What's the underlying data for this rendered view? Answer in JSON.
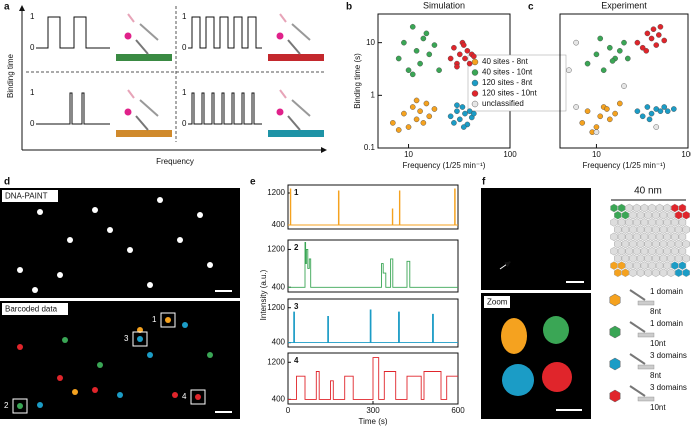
{
  "figure": {
    "panel_a": {
      "label": "a",
      "y_axis_label": "Binding time",
      "x_axis_label": "Frequency",
      "tick_high": "1",
      "tick_low": "0"
    },
    "panel_d": {
      "label": "d",
      "top_title": "DNA-PAINT",
      "bottom_title": "Barcoded data",
      "markers": [
        "1",
        "2",
        "3",
        "4"
      ]
    },
    "panel_f": {
      "label": "f",
      "scale": "40 nm",
      "zoom_title": "Zoom",
      "legend": [
        {
          "line1": "1 domain",
          "line2": "8nt",
          "color": "#f5a21f"
        },
        {
          "line1": "1 domain",
          "line2": "10nt",
          "color": "#3aa655"
        },
        {
          "line1": "3 domains",
          "line2": "8nt",
          "color": "#1b9cc6"
        },
        {
          "line1": "3 domains",
          "line2": "10nt",
          "color": "#e0252b"
        }
      ]
    }
  },
  "chart_data": [
    {
      "type": "scatter",
      "panel_label": "b",
      "title": "Simulation",
      "xlabel": "Frequency (1/25 min⁻¹)",
      "ylabel": "Binding time (s)",
      "log_x": true,
      "log_y": true,
      "xlim": [
        5,
        100
      ],
      "ylim": [
        0.1,
        35
      ],
      "xticks": [
        10,
        100
      ],
      "yticks": [
        0.1,
        1,
        10
      ],
      "series": [
        {
          "name": "40 sites - 8nt",
          "color": "#f5a21f",
          "x": [
            7,
            9,
            10,
            11,
            12,
            13,
            14,
            15,
            16,
            18,
            8,
            12
          ],
          "values": [
            0.3,
            0.45,
            0.25,
            0.6,
            0.35,
            0.5,
            0.3,
            0.7,
            0.4,
            0.55,
            0.22,
            0.8
          ]
        },
        {
          "name": "40 sites - 10nt",
          "color": "#3aa655",
          "x": [
            8,
            9,
            10,
            11,
            12,
            13,
            14,
            16,
            18,
            20,
            11,
            15
          ],
          "values": [
            5,
            10,
            3,
            20,
            7,
            4,
            12,
            6,
            9,
            3,
            2.5,
            15
          ]
        },
        {
          "name": "120 sites - 8nt",
          "color": "#1b9cc6",
          "x": [
            26,
            28,
            30,
            32,
            34,
            36,
            38,
            40,
            42,
            30,
            35,
            44
          ],
          "values": [
            0.4,
            0.3,
            0.5,
            0.35,
            0.6,
            0.45,
            0.28,
            0.5,
            0.38,
            0.65,
            0.25,
            0.45
          ]
        },
        {
          "name": "120 sites - 10nt",
          "color": "#e0252b",
          "x": [
            26,
            28,
            30,
            32,
            34,
            36,
            38,
            40,
            42,
            30,
            35,
            44
          ],
          "values": [
            5,
            8,
            4,
            6,
            10,
            5,
            7,
            4,
            6,
            3.5,
            9,
            5.5
          ]
        },
        {
          "name": "unclassified",
          "color": "#e6e6e6",
          "x": [],
          "values": []
        }
      ]
    },
    {
      "type": "scatter",
      "panel_label": "c",
      "title": "Experiment",
      "xlabel": "Frequency (1/25 min⁻¹)",
      "log_x": true,
      "log_y": true,
      "xlim": [
        4,
        100
      ],
      "ylim": [
        0.1,
        35
      ],
      "xticks": [
        10,
        100
      ],
      "series": [
        {
          "color": "#f5a21f",
          "x": [
            7,
            8,
            10,
            12,
            14,
            16,
            18,
            11,
            9,
            13
          ],
          "values": [
            0.3,
            0.5,
            0.25,
            0.6,
            0.35,
            0.45,
            0.7,
            0.4,
            0.2,
            0.55
          ]
        },
        {
          "color": "#3aa655",
          "x": [
            8,
            10,
            12,
            14,
            16,
            18,
            20,
            11,
            15,
            22
          ],
          "values": [
            4,
            6,
            3,
            8,
            5,
            7,
            10,
            12,
            4.5,
            5
          ]
        },
        {
          "color": "#1b9cc6",
          "x": [
            28,
            32,
            36,
            40,
            45,
            50,
            55,
            60,
            70,
            38
          ],
          "values": [
            0.5,
            0.4,
            0.6,
            0.45,
            0.55,
            0.5,
            0.6,
            0.5,
            0.55,
            0.35
          ]
        },
        {
          "color": "#e0252b",
          "x": [
            28,
            32,
            36,
            40,
            45,
            50,
            55,
            35,
            42,
            48
          ],
          "values": [
            10,
            8,
            15,
            12,
            9,
            20,
            11,
            7,
            18,
            14
          ]
        },
        {
          "color": "#e6e6e6",
          "x": [
            5,
            6,
            10,
            6,
            20,
            45
          ],
          "values": [
            3,
            0.6,
            0.2,
            10,
            1.5,
            0.25
          ]
        }
      ]
    },
    {
      "type": "line",
      "panel_label": "e",
      "label": "1",
      "ylabel": "Intensity (a.u.)",
      "xlim": [
        0,
        600
      ],
      "ylim": [
        300,
        1400
      ],
      "yticks": [
        400,
        1200
      ],
      "x": [
        0,
        8,
        8,
        10,
        10,
        178,
        178,
        180,
        180,
        368,
        368,
        370,
        370,
        393,
        393,
        395,
        395,
        588,
        588,
        590,
        590,
        600
      ],
      "series": [
        {
          "color": "#f5a21f",
          "values": [
            400,
            400,
            1300,
            1300,
            400,
            400,
            1250,
            1250,
            400,
            400,
            800,
            800,
            400,
            400,
            1250,
            1250,
            400,
            400,
            1300,
            1300,
            400,
            400
          ]
        }
      ]
    },
    {
      "type": "line",
      "label": "2",
      "xlim": [
        0,
        600
      ],
      "ylim": [
        300,
        1400
      ],
      "yticks": [
        400,
        1200
      ],
      "x": [
        0,
        60,
        60,
        62,
        62,
        65,
        65,
        70,
        70,
        75,
        75,
        80,
        80,
        330,
        330,
        336,
        336,
        345,
        345,
        362,
        362,
        370,
        370,
        420,
        420,
        430,
        430,
        600
      ],
      "series": [
        {
          "color": "#3aa655",
          "values": [
            400,
            400,
            1350,
            1350,
            900,
            900,
            1200,
            1200,
            800,
            800,
            1000,
            1000,
            400,
            400,
            900,
            900,
            700,
            700,
            400,
            400,
            1000,
            1000,
            400,
            400,
            950,
            950,
            400,
            400
          ]
        }
      ]
    },
    {
      "type": "line",
      "label": "3",
      "xlim": [
        0,
        600
      ],
      "ylim": [
        300,
        1400
      ],
      "yticks": [
        400,
        1200
      ],
      "x": [
        0,
        20,
        20,
        23,
        23,
        140,
        140,
        143,
        143,
        290,
        290,
        293,
        293,
        390,
        390,
        393,
        393,
        510,
        510,
        513,
        513,
        600
      ],
      "series": [
        {
          "color": "#1b9cc6",
          "values": [
            400,
            400,
            1100,
            1100,
            400,
            400,
            1000,
            1000,
            400,
            400,
            1150,
            1150,
            400,
            400,
            1100,
            1100,
            400,
            400,
            1050,
            1050,
            400,
            400
          ]
        }
      ]
    },
    {
      "type": "line",
      "label": "4",
      "xlabel": "Time (s)",
      "xlim": [
        0,
        600
      ],
      "ylim": [
        300,
        1400
      ],
      "yticks": [
        400,
        1200
      ],
      "xticks": [
        0,
        300,
        600
      ],
      "x": [
        0,
        30,
        30,
        60,
        60,
        100,
        100,
        110,
        110,
        150,
        150,
        160,
        160,
        200,
        200,
        230,
        230,
        300,
        300,
        320,
        320,
        340,
        340,
        380,
        380,
        420,
        420,
        470,
        470,
        480,
        480,
        540,
        540,
        560,
        560,
        600
      ],
      "series": [
        {
          "color": "#e0252b",
          "values": [
            400,
            400,
            900,
            900,
            400,
            400,
            1000,
            1000,
            400,
            400,
            800,
            800,
            400,
            400,
            900,
            900,
            400,
            400,
            1300,
            1300,
            400,
            400,
            1000,
            1000,
            400,
            400,
            900,
            900,
            400,
            400,
            1000,
            1000,
            400,
            400,
            900,
            900
          ]
        }
      ]
    }
  ]
}
